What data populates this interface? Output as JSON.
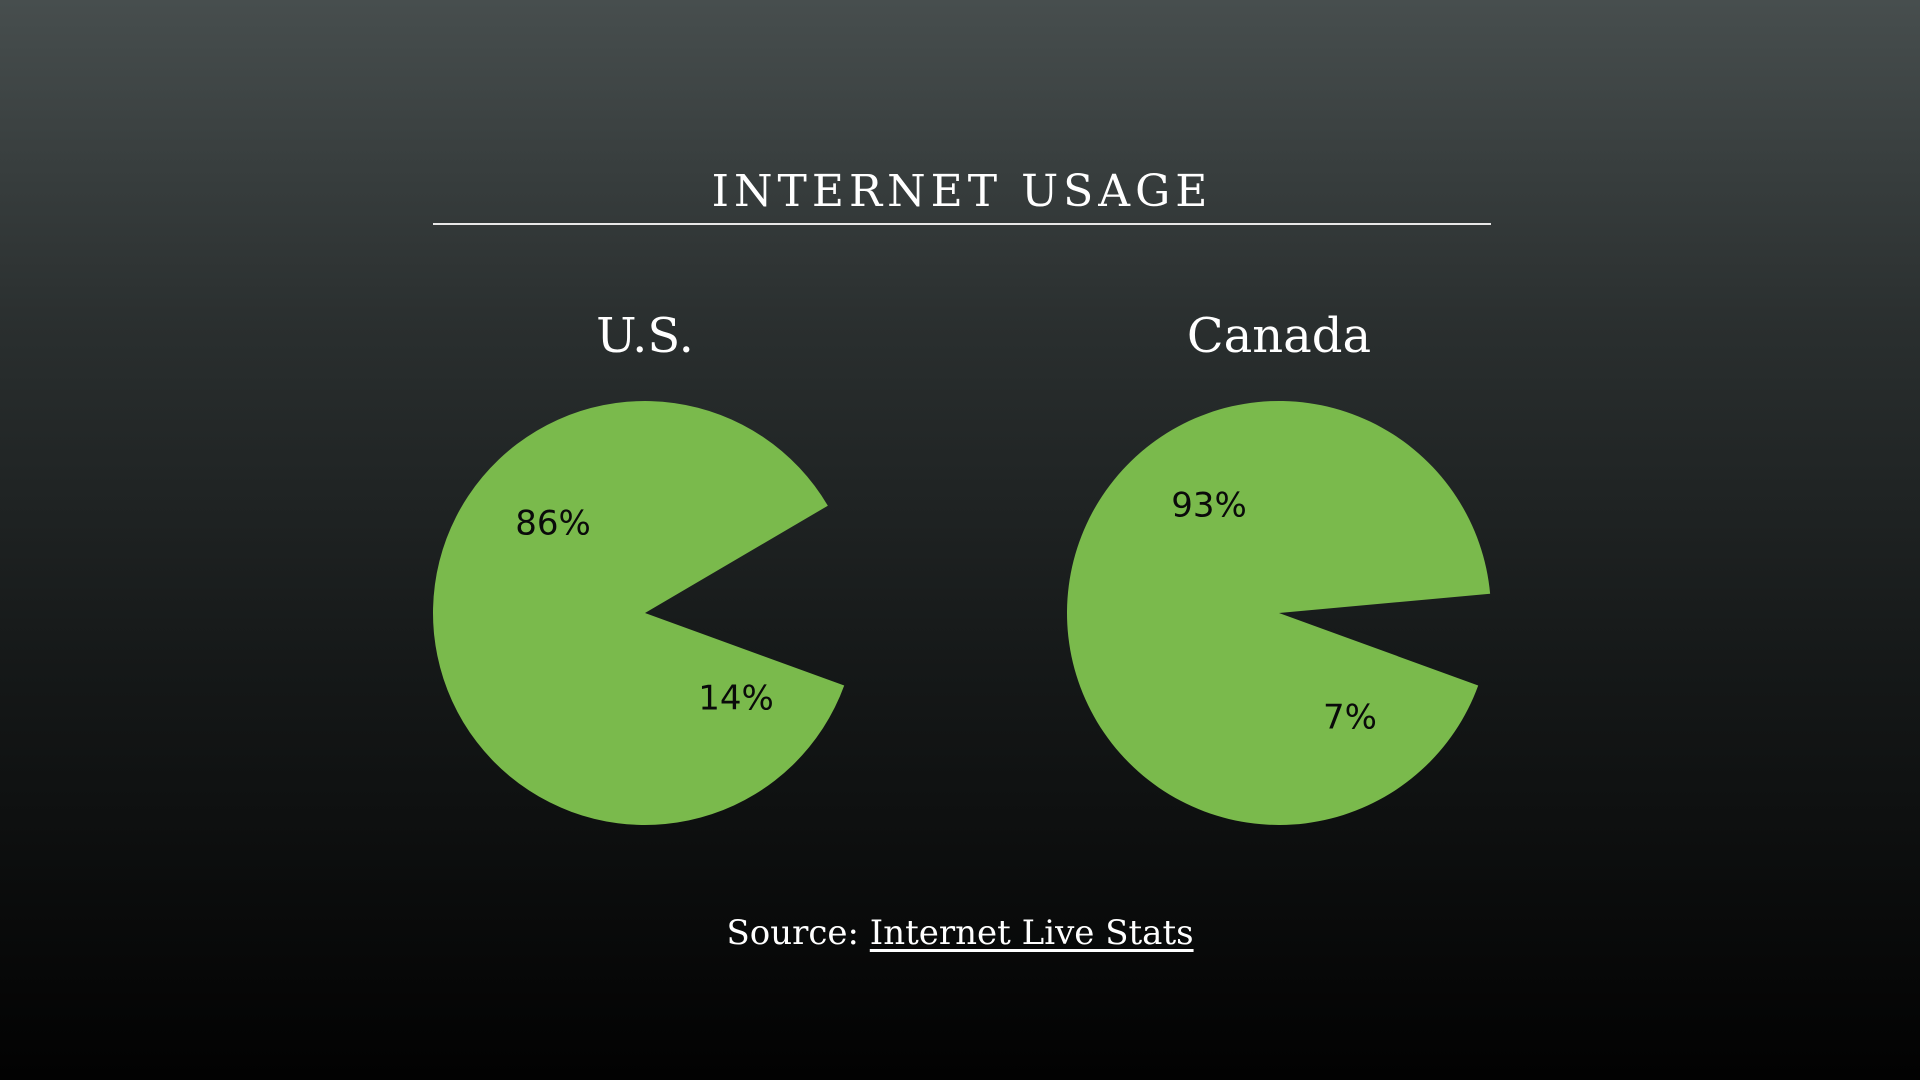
{
  "title": "INTERNET USAGE",
  "source": {
    "prefix": "Source:",
    "link_text": "Internet Live Stats"
  },
  "colors": {
    "slice_primary": "#7aba4c"
  },
  "chart_data": [
    {
      "type": "pie",
      "title": "U.S.",
      "slices": [
        {
          "label": "86%",
          "value": 86,
          "color": "#7aba4c",
          "exploded": false
        },
        {
          "label": "14%",
          "value": 14,
          "color": "none",
          "exploded": false
        }
      ]
    },
    {
      "type": "pie",
      "title": "Canada",
      "slices": [
        {
          "label": "93%",
          "value": 93,
          "color": "#7aba4c",
          "exploded": false
        },
        {
          "label": "7%",
          "value": 7,
          "color": "none",
          "exploded": false
        }
      ]
    }
  ]
}
